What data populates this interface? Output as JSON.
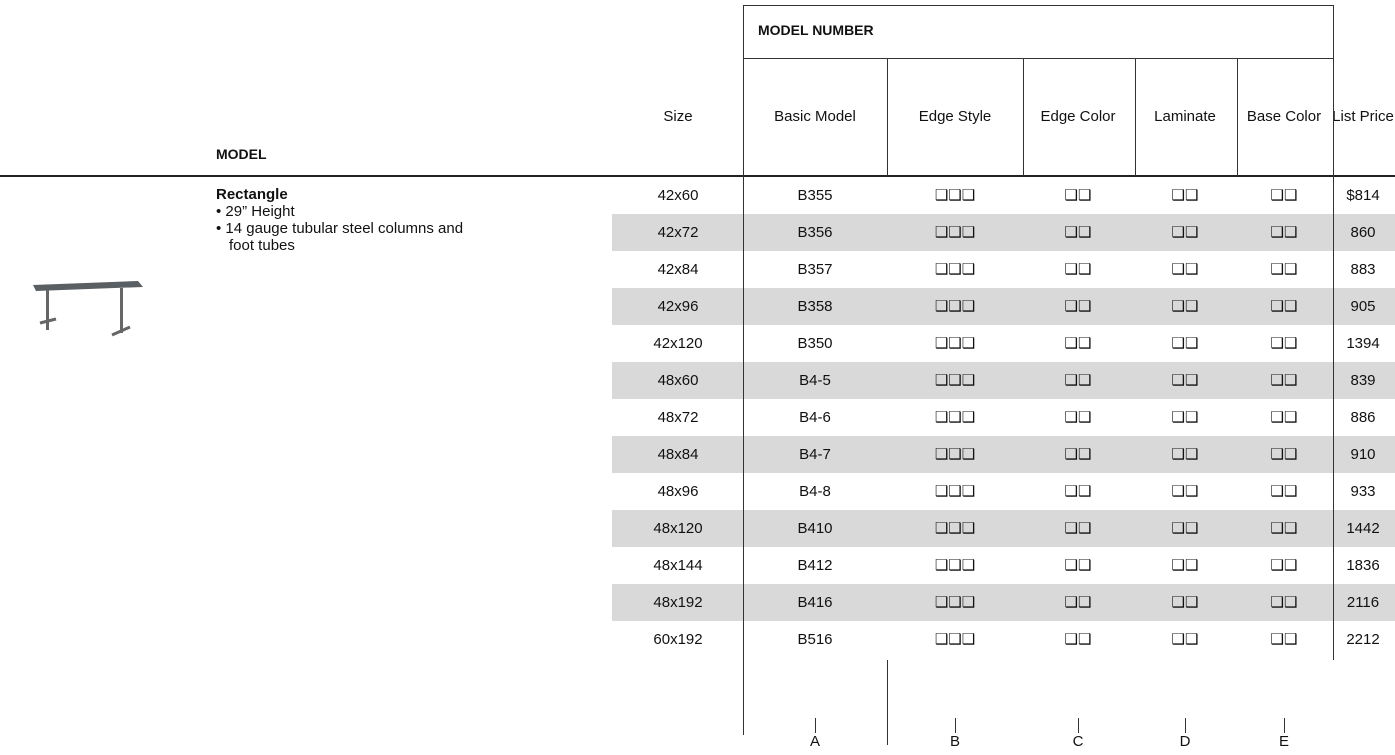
{
  "header": {
    "model_number": "MODEL NUMBER",
    "model": "MODEL",
    "columns": [
      "Size",
      "Basic Model",
      "Edge Style",
      "Edge Color",
      "Laminate",
      "Base Color",
      "List Price"
    ]
  },
  "product": {
    "name": "Rectangle",
    "features": [
      "29”  Height",
      "14 gauge tubular steel columns and foot tubes"
    ]
  },
  "table": {
    "rows": [
      [
        "42x60",
        "B355",
        "❑❑❑",
        "❑❑",
        "❑❑",
        "❑❑",
        "$814"
      ],
      [
        "42x72",
        "B356",
        "❑❑❑",
        "❑❑",
        "❑❑",
        "❑❑",
        "860"
      ],
      [
        "42x84",
        "B357",
        "❑❑❑",
        "❑❑",
        "❑❑",
        "❑❑",
        "883"
      ],
      [
        "42x96",
        "B358",
        "❑❑❑",
        "❑❑",
        "❑❑",
        "❑❑",
        "905"
      ],
      [
        "42x120",
        "B350",
        "❑❑❑",
        "❑❑",
        "❑❑",
        "❑❑",
        "1394"
      ],
      [
        "48x60",
        "B4-5",
        "❑❑❑",
        "❑❑",
        "❑❑",
        "❑❑",
        "839"
      ],
      [
        "48x72",
        "B4-6",
        "❑❑❑",
        "❑❑",
        "❑❑",
        "❑❑",
        "886"
      ],
      [
        "48x84",
        "B4-7",
        "❑❑❑",
        "❑❑",
        "❑❑",
        "❑❑",
        "910"
      ],
      [
        "48x96",
        "B4-8",
        "❑❑❑",
        "❑❑",
        "❑❑",
        "❑❑",
        "933"
      ],
      [
        "48x120",
        "B410",
        "❑❑❑",
        "❑❑",
        "❑❑",
        "❑❑",
        "1442"
      ],
      [
        "48x144",
        "B412",
        "❑❑❑",
        "❑❑",
        "❑❑",
        "❑❑",
        "1836"
      ],
      [
        "48x192",
        "B416",
        "❑❑❑",
        "❑❑",
        "❑❑",
        "❑❑",
        "2116"
      ],
      [
        "60x192",
        "B516",
        "❑❑❑",
        "❑❑",
        "❑❑",
        "❑❑",
        "2212"
      ]
    ]
  },
  "footer": {
    "codes": [
      "A",
      "B",
      "C",
      "D",
      "E"
    ]
  }
}
